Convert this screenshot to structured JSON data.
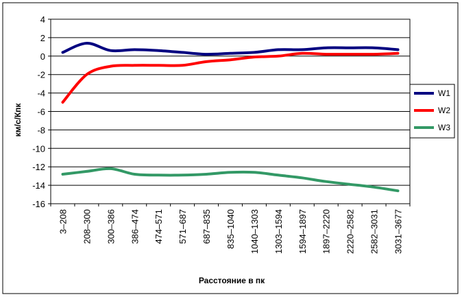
{
  "chart_data": {
    "type": "line",
    "xlabel": "Расстояние в пк",
    "ylabel": "км/с/Кпк",
    "ylim": [
      -16,
      4
    ],
    "yticks": [
      4,
      2,
      0,
      -2,
      -4,
      -6,
      -8,
      -10,
      -12,
      -14,
      -16
    ],
    "grid": true,
    "legend_position": "right",
    "categories": [
      "3–208",
      "208–300",
      "300–386",
      "386–474",
      "474–571",
      "571–687",
      "687–835",
      "835–1040",
      "1040–1303",
      "1303–1594",
      "1594–1897",
      "1897–2220",
      "2220–2582",
      "2582–3031",
      "3031–3677"
    ],
    "series": [
      {
        "name": "W1",
        "color": "#000080",
        "values": [
          0.4,
          1.4,
          0.6,
          0.7,
          0.6,
          0.4,
          0.2,
          0.3,
          0.4,
          0.7,
          0.7,
          0.9,
          0.9,
          0.9,
          0.7
        ]
      },
      {
        "name": "W2",
        "color": "#ff0000",
        "values": [
          -5.0,
          -2.0,
          -1.1,
          -1.0,
          -1.0,
          -1.0,
          -0.6,
          -0.4,
          -0.1,
          0.0,
          0.3,
          0.2,
          0.2,
          0.2,
          0.3
        ]
      },
      {
        "name": "W3",
        "color": "#339966",
        "values": [
          -12.8,
          -12.5,
          -12.2,
          -12.8,
          -12.9,
          -12.9,
          -12.8,
          -12.6,
          -12.6,
          -12.9,
          -13.2,
          -13.6,
          -13.9,
          -14.2,
          -14.6
        ]
      }
    ]
  }
}
